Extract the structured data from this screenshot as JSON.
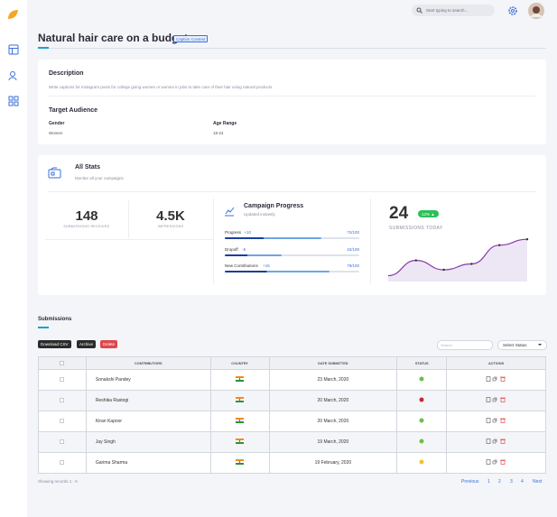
{
  "header": {
    "search_placeholder": "Start typing to search..."
  },
  "campaign": {
    "title": "Natural hair care on a budget",
    "badge": "Caption Contest",
    "description_heading": "Description",
    "description": "Write captions for instagram posts for college going women or women in jobs to take care of their hair using natural products.",
    "audience_heading": "Target Audience",
    "gender_label": "Gender",
    "gender": "Women",
    "age_label": "Age Range",
    "age": "18-24"
  },
  "stats": {
    "title": "All Stats",
    "subtitle": "Monitor all your campaigns",
    "submissions_received": "148",
    "submissions_received_label": "SUBMISSIONS RECEIVED",
    "impressions": "4.5K",
    "impressions_label": "IMPRESSIONS",
    "progress_title": "Campaign Progress",
    "progress_subtitle": "Updated instantly",
    "progress": {
      "max": 100,
      "items": [
        {
          "label": "Progress",
          "change": "+10",
          "value": 72,
          "value_label": "72/100"
        },
        {
          "label": "Dropoff",
          "change": "-5",
          "value": 42,
          "value_label": "42/100"
        },
        {
          "label": "New Contributions",
          "change": "+15",
          "value": 78,
          "value_label": "78/100"
        }
      ]
    },
    "today": "24",
    "today_badge": "12% ▲",
    "today_label": "SUBMISSIONS TODAY",
    "sparkline": {
      "values": [
        10,
        36,
        20,
        30,
        62,
        72
      ],
      "ylim": [
        0,
        80
      ]
    }
  },
  "submissions": {
    "title": "Submissions",
    "buttons": [
      "Download CSV",
      "Archive",
      "Delete"
    ],
    "search_placeholder": "Search",
    "status_select": "Select Status",
    "columns": [
      "CONTRIBUTORS",
      "COUNTRY",
      "DATE SUBMITTED",
      "STATUS",
      "ACTIONS"
    ],
    "rows": [
      {
        "name": "Sonakshi Pandey",
        "date": "23 March, 2020",
        "status_color": "#6cc04a"
      },
      {
        "name": "Reshika Rastogi",
        "date": "20 March, 2020",
        "status_color": "#c8292d"
      },
      {
        "name": "Kiran Kapoor",
        "date": "20 March, 2020",
        "status_color": "#6cc04a"
      },
      {
        "name": "Jay Singh",
        "date": "19 March, 2020",
        "status_color": "#6cc04a"
      },
      {
        "name": "Garima Sharma",
        "date": "19 February, 2020",
        "status_color": "#f2c12e"
      }
    ],
    "footer": "Showing records 1 - 5",
    "pagination": [
      "Previous",
      "1",
      "2",
      "3",
      "4",
      "Next"
    ]
  }
}
